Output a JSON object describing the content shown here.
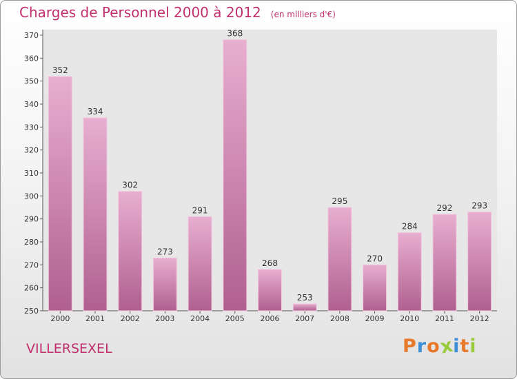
{
  "header": {
    "title": "Charges de Personnel 2000 à 2012",
    "subtitle": "(en milliers d'€)"
  },
  "footer": {
    "town": "VILLERSEXEL",
    "logo_text": "Proxiti",
    "logo_colors": [
      "#e8792a",
      "#3f8fd6",
      "#e8792a",
      "#9acb3c",
      "#3f8fd6",
      "#e8792a",
      "#9acb3c"
    ]
  },
  "colors": {
    "bar_light": "#e8aed0",
    "bar_dark": "#b0608f",
    "title": "#c0306e"
  },
  "chart_data": {
    "type": "bar",
    "categories": [
      "2000",
      "2001",
      "2002",
      "2003",
      "2004",
      "2005",
      "2006",
      "2007",
      "2008",
      "2009",
      "2010",
      "2011",
      "2012"
    ],
    "values": [
      352,
      334,
      302,
      273,
      291,
      368,
      268,
      253,
      295,
      270,
      284,
      292,
      293
    ],
    "ylim": [
      250,
      370
    ],
    "yticks": [
      250,
      260,
      270,
      280,
      290,
      300,
      310,
      320,
      330,
      340,
      350,
      360,
      370
    ],
    "grid": false,
    "data_labels": true
  }
}
